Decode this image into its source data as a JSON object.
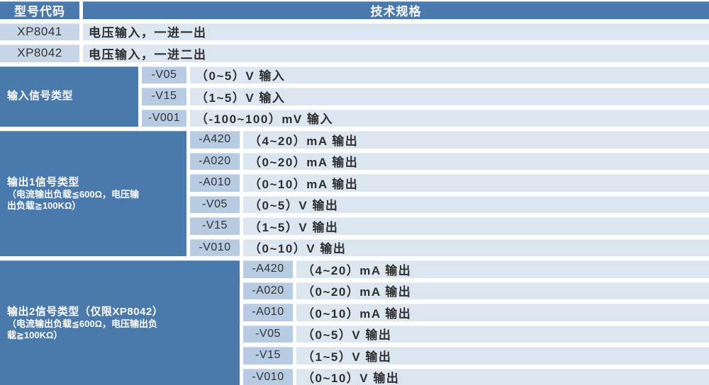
{
  "colors": {
    "header_blue": "#4A79AD",
    "model_cell": "#C7D5E6",
    "code_cell": "#B7CBE3",
    "spec_cell": "#DCE6F1",
    "gap_white": "#FFFFFF",
    "text_dark": "#333333",
    "text_white": "#FFFFFF"
  },
  "table": {
    "header": {
      "model_col": "型号代码",
      "spec_col": "技术规格"
    },
    "model_rows": [
      {
        "code": "XP8041",
        "spec": "电压输入，一进一出"
      },
      {
        "code": "XP8042",
        "spec": "电压输入，一进二出"
      }
    ],
    "sections": [
      {
        "label": "输入信号类型",
        "note_lines": [],
        "rows": [
          {
            "code": "-V05",
            "spec": "（0~5）V 输入"
          },
          {
            "code": "-V15",
            "spec": "（1~5）V 输入"
          },
          {
            "code": "-V001",
            "spec": "（-100~100）mV 输入"
          }
        ]
      },
      {
        "label": "输出1信号类型",
        "note_lines": [
          "（电流输出负载≦600Ω，电压输",
          "出负载≧100KΩ）"
        ],
        "rows": [
          {
            "code": "-A420",
            "spec": "（4~20）mA 输出"
          },
          {
            "code": "-A020",
            "spec": "（0~20）mA 输出"
          },
          {
            "code": "-A010",
            "spec": "（0~10）mA 输出"
          },
          {
            "code": "-V05",
            "spec": "（0~5）V 输出"
          },
          {
            "code": "-V15",
            "spec": "（1~5）V 输出"
          },
          {
            "code": "-V010",
            "spec": "（0~10）V 输出"
          }
        ]
      },
      {
        "label": "输出2信号类型（仅限XP8042）",
        "note_lines": [
          "（电流输出负载≦600Ω，电压输出负",
          "载≧100KΩ）"
        ],
        "rows": [
          {
            "code": "-A420",
            "spec": "（4~20）mA 输出"
          },
          {
            "code": "-A020",
            "spec": "（0~20）mA 输出"
          },
          {
            "code": "-A010",
            "spec": "（0~10）mA 输出"
          },
          {
            "code": "-V05",
            "spec": "（0~5）V 输出"
          },
          {
            "code": "-V15",
            "spec": "（1~5）V 输出"
          },
          {
            "code": "-V010",
            "spec": "（0~10）V 输出"
          }
        ]
      }
    ]
  }
}
